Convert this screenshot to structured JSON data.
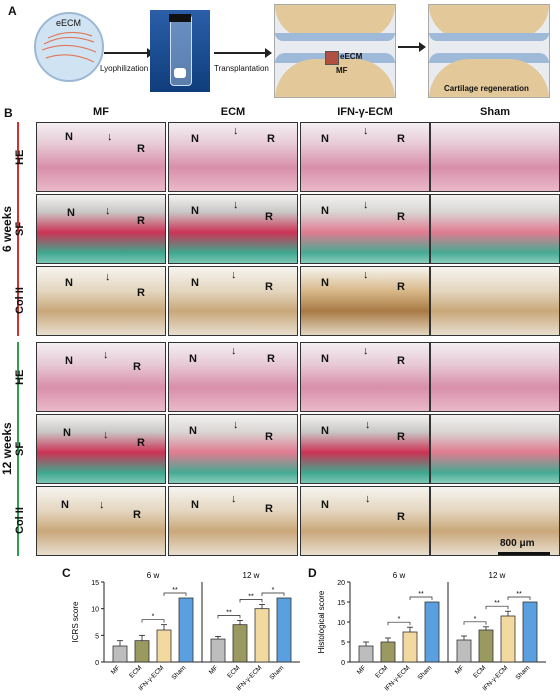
{
  "panels": {
    "A": "A",
    "B": "B",
    "C": "C",
    "D": "D"
  },
  "schematic": {
    "eecm": "eECM",
    "lyophilization": "Lyophilization",
    "transplantation": "Transplantation",
    "eecm2": "eECM",
    "mf": "MF",
    "cartilage_regeneration": "Cartilage regeneration"
  },
  "histology": {
    "columns": [
      "MF",
      "ECM",
      "IFN-γ-ECM",
      "Sham"
    ],
    "rows": [
      "HE",
      "SF",
      "Col II",
      "HE",
      "SF",
      "Col II"
    ],
    "weeks": [
      "6 weeks",
      "12 weeks"
    ],
    "marker_n": "N",
    "marker_r": "R",
    "marker_arrow": "↓",
    "scale_bar": "800 μm"
  },
  "chart_data": [
    {
      "type": "bar",
      "panel": "C",
      "ylabel": "ICRS score",
      "groups": [
        "6 w",
        "12 w"
      ],
      "categories": [
        "MF",
        "ECM",
        "IFN-γ-ECM",
        "Sham"
      ],
      "series": [
        {
          "values": [
            3,
            4,
            6,
            12
          ]
        },
        {
          "values": [
            4.3,
            7,
            10,
            12
          ]
        }
      ],
      "errors": [
        [
          1,
          1,
          1,
          0
        ],
        [
          0.5,
          0.8,
          0.8,
          0
        ]
      ],
      "ylim": [
        0,
        15
      ],
      "yticks": [
        0,
        5,
        10,
        15
      ],
      "significance": [
        "*",
        "**",
        "**",
        "**",
        "*"
      ],
      "colors": [
        "#bdbdbd",
        "#9a9a60",
        "#f2d9a0",
        "#5aa0e0"
      ]
    },
    {
      "type": "bar",
      "panel": "D",
      "ylabel": "Histological score",
      "groups": [
        "6 w",
        "12 w"
      ],
      "categories": [
        "MF",
        "ECM",
        "IFN-γ-ECM",
        "Sham"
      ],
      "series": [
        {
          "values": [
            4,
            5,
            7.5,
            15
          ]
        },
        {
          "values": [
            5.5,
            8,
            11.5,
            15
          ]
        }
      ],
      "errors": [
        [
          1,
          1,
          1.2,
          0
        ],
        [
          1,
          0.8,
          1.2,
          0
        ]
      ],
      "ylim": [
        0,
        20
      ],
      "yticks": [
        0,
        5,
        10,
        15,
        20
      ],
      "significance": [
        "*",
        "**",
        "*",
        "**",
        "**"
      ],
      "colors": [
        "#bdbdbd",
        "#9a9a60",
        "#f2d9a0",
        "#5aa0e0"
      ]
    }
  ]
}
